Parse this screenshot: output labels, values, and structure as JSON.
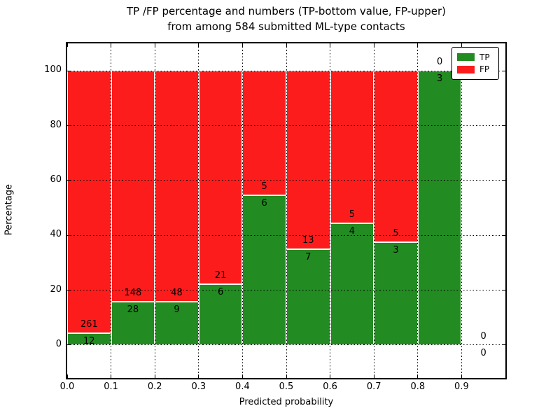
{
  "title": {
    "line1": "TP /FP percentage and numbers (TP-bottom value, FP-upper)",
    "line2": "from among 584 submitted ML-type contacts"
  },
  "chart_data": {
    "type": "bar",
    "stacked": true,
    "title": "TP /FP percentage and numbers (TP-bottom value, FP-upper) from among 584 submitted ML-type contacts",
    "xlabel": "Predicted probability",
    "ylabel": "Percentage",
    "xlim": [
      0.0,
      1.0
    ],
    "ylim": [
      -12,
      110
    ],
    "xticks": [
      "0.0",
      "0.1",
      "0.2",
      "0.3",
      "0.4",
      "0.5",
      "0.6",
      "0.7",
      "0.8",
      "0.9"
    ],
    "yticks": [
      0,
      20,
      40,
      60,
      80,
      100
    ],
    "grid": true,
    "grid_style": "dotted",
    "total_contacts": 584,
    "categories": [
      "0.0-0.1",
      "0.1-0.2",
      "0.2-0.3",
      "0.3-0.4",
      "0.4-0.5",
      "0.5-0.6",
      "0.6-0.7",
      "0.7-0.8",
      "0.8-0.9",
      "0.9-1.0"
    ],
    "series": [
      {
        "name": "TP",
        "counts": [
          12,
          28,
          9,
          6,
          6,
          7,
          4,
          3,
          3,
          0
        ]
      },
      {
        "name": "FP",
        "counts": [
          261,
          148,
          48,
          21,
          5,
          13,
          5,
          5,
          0,
          0
        ]
      }
    ],
    "tp_percent_of_bin": [
      4.4,
      15.9,
      15.8,
      22.2,
      54.5,
      35.0,
      44.4,
      37.5,
      100.0,
      0.0
    ],
    "legend": {
      "position": "upper right",
      "entries": [
        {
          "label": "TP",
          "color": "#228b22"
        },
        {
          "label": "FP",
          "color": "#fc1c1c"
        }
      ]
    }
  },
  "colors": {
    "tp": "#228b22",
    "fp": "#fc1c1c",
    "grid": "#000000",
    "frame": "#000000",
    "background": "#ffffff"
  }
}
